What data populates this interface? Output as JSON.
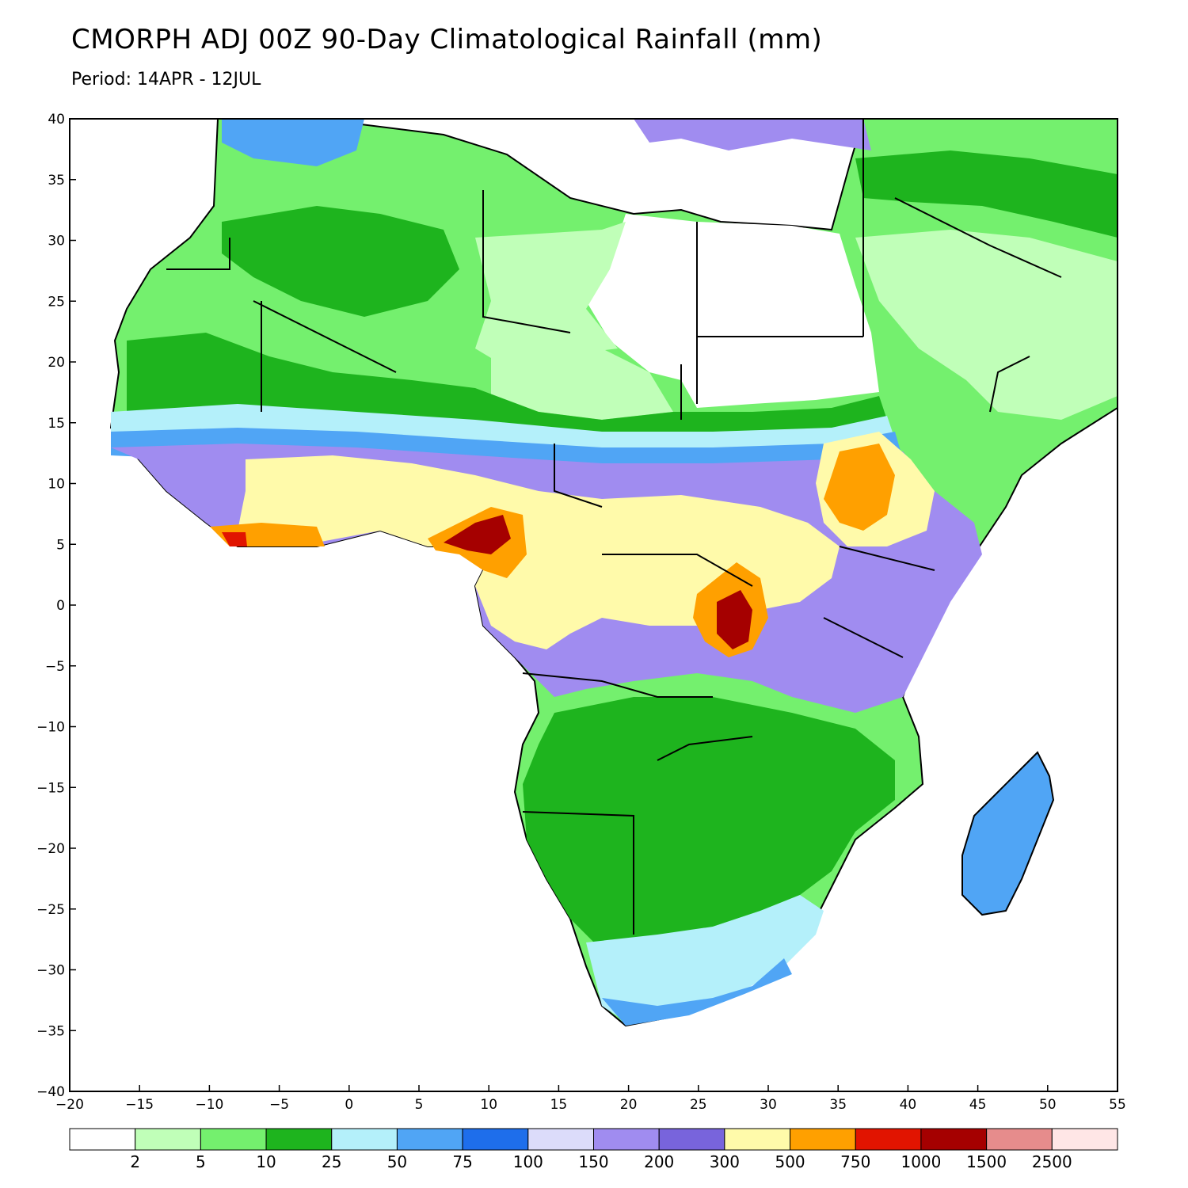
{
  "title": "CMORPH ADJ 00Z 90-Day Climatological Rainfall (mm)",
  "subtitle": "Period: 14APR - 12JUL",
  "map": {
    "region": "Africa",
    "lon_range": [
      -20,
      55
    ],
    "lat_range": [
      -40,
      40
    ],
    "lon_ticks": [
      "-20",
      "-15",
      "-10",
      "-5",
      "0",
      "5",
      "10",
      "15",
      "20",
      "25",
      "30",
      "35",
      "40",
      "45",
      "50",
      "55"
    ],
    "lat_ticks": [
      "40",
      "35",
      "30",
      "25",
      "20",
      "15",
      "10",
      "5",
      "0",
      "-5",
      "-10",
      "-15",
      "-20",
      "-25",
      "-30",
      "-35",
      "-40"
    ]
  },
  "legend": {
    "colors": [
      "#ffffff",
      "#c0ffb8",
      "#74f06e",
      "#1eb41e",
      "#b4f0fa",
      "#50a5f5",
      "#1e6eeb",
      "#dcdcfa",
      "#a08cf0",
      "#7864dc",
      "#fffaaa",
      "#ffa000",
      "#e11400",
      "#a50000",
      "#e68c8c",
      "#ffe6e6"
    ],
    "labels": [
      "2",
      "5",
      "10",
      "25",
      "50",
      "75",
      "100",
      "150",
      "200",
      "300",
      "500",
      "750",
      "1000",
      "1500",
      "2500"
    ]
  },
  "colors": {
    "land_none": "#ffffff",
    "ocean": "#ffffff",
    "borders": "#000000",
    "admin_borders": "#999999"
  }
}
